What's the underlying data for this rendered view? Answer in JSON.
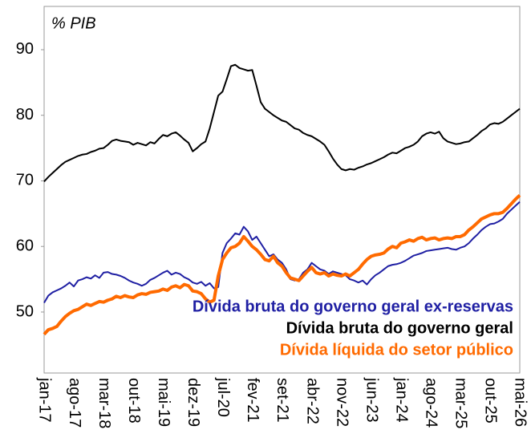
{
  "chart_data": {
    "type": "line",
    "title": "% PIB",
    "categories": [
      "jan-17",
      null,
      null,
      null,
      null,
      null,
      null,
      "ago-17",
      null,
      null,
      null,
      null,
      null,
      null,
      "mar-18",
      null,
      null,
      null,
      null,
      null,
      null,
      "out-18",
      null,
      null,
      null,
      null,
      null,
      null,
      "mai-19",
      null,
      null,
      null,
      null,
      null,
      null,
      "dez-19",
      null,
      null,
      null,
      null,
      null,
      null,
      "jul-20",
      null,
      null,
      null,
      null,
      null,
      null,
      "fev-21",
      null,
      null,
      null,
      null,
      null,
      null,
      "set-21",
      null,
      null,
      null,
      null,
      null,
      null,
      "abr-22",
      null,
      null,
      null,
      null,
      null,
      null,
      "nov-22",
      null,
      null,
      null,
      null,
      null,
      null,
      "jun-23",
      null,
      null,
      null,
      null,
      null,
      null,
      "jan-24",
      null,
      null,
      null,
      null,
      null,
      null,
      "ago-24",
      null,
      null,
      null,
      null,
      null,
      null,
      "mar-25",
      null,
      null,
      null,
      null,
      null,
      null,
      "out-25",
      null,
      null,
      null,
      null,
      null,
      null,
      "mai-26"
    ],
    "series": [
      {
        "name": "Dívida bruta do governo geral ex-reservas",
        "color": "#1f1fa3",
        "values": [
          51.4,
          52.5,
          53.0,
          53.3,
          53.6,
          54.0,
          54.5,
          53.9,
          54.8,
          55.0,
          55.3,
          55.1,
          55.6,
          55.2,
          56.0,
          56.1,
          55.8,
          55.7,
          55.5,
          55.2,
          54.8,
          54.5,
          54.3,
          54.0,
          54.3,
          54.9,
          55.2,
          55.6,
          56.0,
          56.3,
          55.7,
          56.0,
          55.8,
          55.3,
          55.0,
          54.5,
          54.3,
          54.6,
          54.0,
          54.4,
          53.6,
          53.8,
          59.0,
          60.5,
          61.2,
          62.0,
          61.8,
          63.0,
          62.3,
          61.0,
          61.5,
          60.5,
          59.5,
          58.5,
          58.8,
          58.0,
          57.5,
          56.5,
          55.0,
          54.8,
          55.0,
          56.0,
          56.5,
          57.5,
          57.0,
          56.5,
          56.3,
          55.8,
          56.2,
          56.0,
          55.8,
          55.6,
          55.0,
          54.8,
          54.5,
          54.8,
          54.2,
          55.0,
          55.6,
          56.0,
          56.5,
          57.0,
          57.2,
          57.3,
          57.5,
          57.8,
          58.2,
          58.6,
          58.8,
          59.0,
          59.3,
          59.4,
          59.5,
          59.6,
          59.7,
          59.8,
          59.6,
          59.5,
          59.8,
          60.0,
          60.5,
          61.2,
          61.8,
          62.5,
          63.0,
          63.4,
          63.5,
          63.8,
          64.2,
          65.0,
          65.6,
          66.2,
          66.8
        ]
      },
      {
        "name": "Dívida bruta do governo geral",
        "color": "#000000",
        "values": [
          69.9,
          70.6,
          71.2,
          71.8,
          72.4,
          72.9,
          73.2,
          73.5,
          73.8,
          74.0,
          74.1,
          74.4,
          74.6,
          74.9,
          75.0,
          75.5,
          76.1,
          76.3,
          76.1,
          76.0,
          75.9,
          75.5,
          75.8,
          75.6,
          75.4,
          75.9,
          75.7,
          76.4,
          77.0,
          76.8,
          77.2,
          77.4,
          76.9,
          76.3,
          75.8,
          74.5,
          75.0,
          75.6,
          76.0,
          78.0,
          80.5,
          83.0,
          83.6,
          85.5,
          87.5,
          87.7,
          87.2,
          87.0,
          86.8,
          86.9,
          84.5,
          82.0,
          81.0,
          80.5,
          80.0,
          79.6,
          79.2,
          79.0,
          78.5,
          78.0,
          77.8,
          77.3,
          77.0,
          76.8,
          76.4,
          76.0,
          75.5,
          74.5,
          73.4,
          72.5,
          71.8,
          71.6,
          71.8,
          71.7,
          72.0,
          72.2,
          72.5,
          72.7,
          73.0,
          73.3,
          73.6,
          74.0,
          74.3,
          74.2,
          74.6,
          75.0,
          75.2,
          75.5,
          76.0,
          76.8,
          77.2,
          77.4,
          77.2,
          77.5,
          76.5,
          76.0,
          75.8,
          75.6,
          75.7,
          75.9,
          76.0,
          76.5,
          77.0,
          77.6,
          78.0,
          78.6,
          78.8,
          78.7,
          79.0,
          79.5,
          80.0,
          80.5,
          81.0
        ]
      },
      {
        "name": "Dívida líquida do setor público",
        "color": "#ff6a00",
        "values": [
          46.6,
          47.3,
          47.5,
          47.8,
          48.6,
          49.3,
          49.8,
          50.2,
          50.4,
          50.8,
          51.2,
          51.0,
          51.3,
          51.6,
          51.5,
          51.8,
          52.0,
          52.4,
          52.2,
          52.5,
          52.3,
          52.2,
          52.6,
          52.8,
          52.7,
          53.0,
          53.1,
          53.2,
          53.5,
          53.3,
          53.8,
          54.0,
          53.7,
          54.2,
          54.0,
          53.2,
          53.1,
          52.8,
          52.0,
          51.5,
          51.8,
          55.5,
          58.0,
          59.0,
          59.8,
          60.0,
          60.5,
          61.5,
          60.8,
          60.0,
          59.5,
          58.8,
          58.0,
          57.8,
          58.5,
          57.5,
          57.0,
          56.0,
          55.2,
          55.0,
          54.8,
          55.5,
          56.2,
          56.8,
          56.0,
          55.8,
          56.0,
          55.5,
          55.8,
          55.6,
          55.5,
          55.8,
          55.5,
          56.0,
          56.5,
          57.3,
          58.0,
          58.5,
          58.7,
          58.8,
          59.0,
          59.6,
          60.0,
          59.8,
          60.5,
          60.7,
          61.0,
          60.8,
          61.2,
          61.4,
          61.0,
          61.2,
          61.3,
          61.0,
          61.2,
          61.3,
          61.2,
          61.5,
          61.5,
          61.8,
          62.5,
          63.0,
          63.6,
          64.2,
          64.5,
          64.8,
          65.0,
          65.0,
          65.2,
          65.8,
          66.5,
          67.2,
          67.8
        ]
      }
    ],
    "ylim": [
      40.7,
      96.6
    ],
    "yticks": [
      50,
      60,
      70,
      80,
      90
    ],
    "grid": false
  }
}
